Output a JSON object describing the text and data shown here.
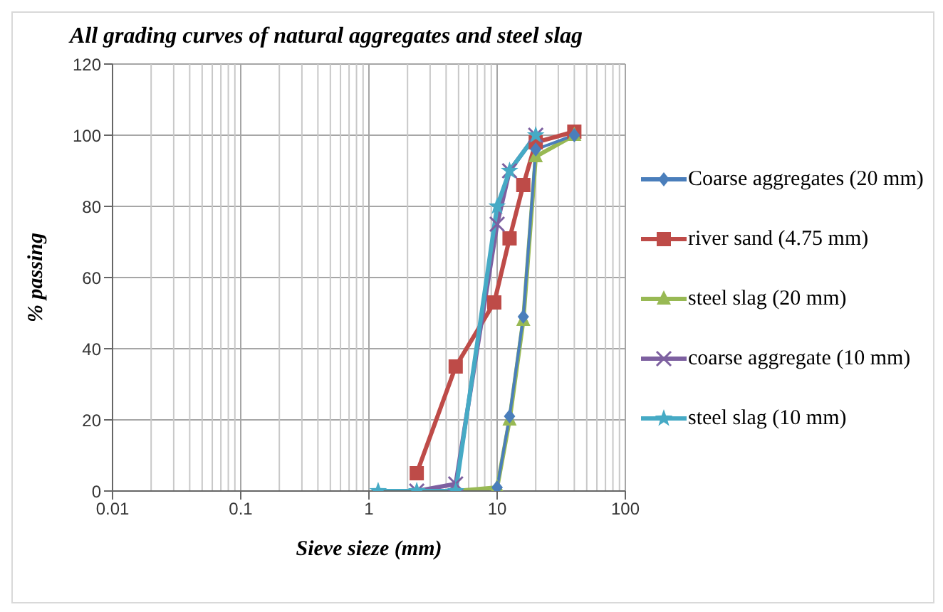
{
  "chart_data": {
    "type": "line",
    "title": "All grading curves of natural aggregates and steel slag",
    "xlabel": "Sieve sieze (mm)",
    "ylabel": "% passing",
    "log": "x",
    "grid": true,
    "legend": "right",
    "xlim": [
      0.01,
      100
    ],
    "xticks": [
      0.01,
      0.1,
      1,
      10,
      100
    ],
    "ylim": [
      0,
      120
    ],
    "yticks": [
      0,
      20,
      40,
      60,
      80,
      100,
      120
    ],
    "series": [
      {
        "name": "Coarse aggregates (20 mm)",
        "color": "#4a7ebb",
        "marker": "diamond",
        "x": [
          10,
          12.5,
          16,
          20,
          40
        ],
        "values": [
          1,
          21,
          49,
          96,
          100
        ]
      },
      {
        "name": "river sand (4.75 mm)",
        "color": "#be4b48",
        "marker": "square",
        "x": [
          2.36,
          4.75,
          9.5,
          12.5,
          16,
          20,
          40
        ],
        "values": [
          5,
          35,
          53,
          71,
          86,
          98,
          101
        ]
      },
      {
        "name": "steel slag (20 mm)",
        "color": "#98b954",
        "marker": "triangle",
        "x": [
          4.75,
          10,
          12.5,
          16,
          20,
          40
        ],
        "values": [
          0,
          1,
          20,
          48,
          94,
          100
        ]
      },
      {
        "name": "coarse aggregate (10 mm)",
        "color": "#7d60a0",
        "marker": "cross",
        "x": [
          2.36,
          4.75,
          10,
          12.5,
          20
        ],
        "values": [
          0,
          2,
          75,
          90,
          100
        ]
      },
      {
        "name": "steel slag (10 mm)",
        "color": "#46aac5",
        "marker": "star",
        "x": [
          1.18,
          2.36,
          4.75,
          10,
          12.5,
          20
        ],
        "values": [
          0,
          0,
          0,
          80,
          90,
          100
        ]
      }
    ]
  }
}
